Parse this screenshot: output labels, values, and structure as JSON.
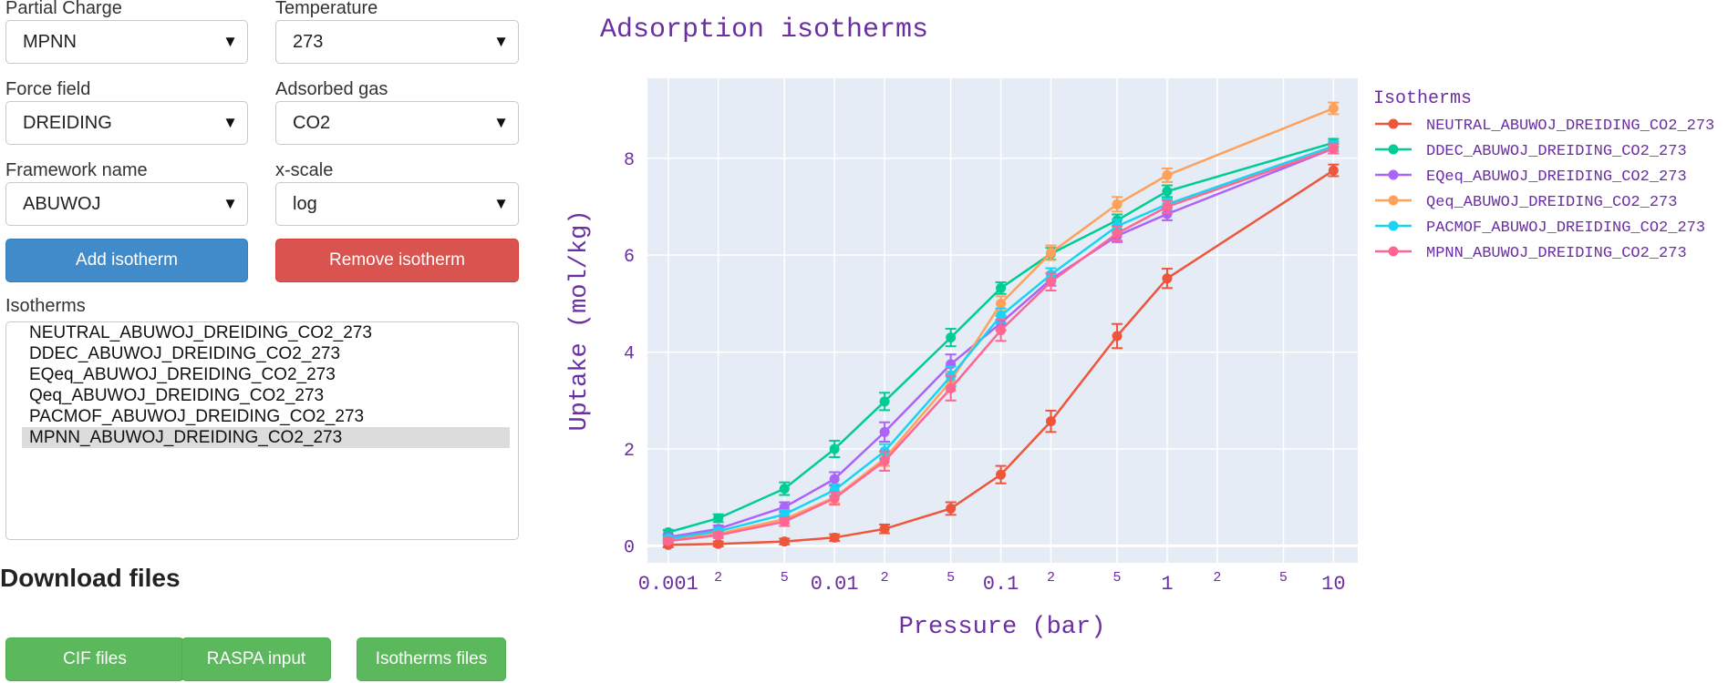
{
  "controls": {
    "partial_charge": {
      "label": "Partial Charge",
      "value": "MPNN"
    },
    "temperature": {
      "label": "Temperature",
      "value": "273"
    },
    "force_field": {
      "label": "Force field",
      "value": "DREIDING"
    },
    "adsorbed_gas": {
      "label": "Adsorbed gas",
      "value": "CO2"
    },
    "framework_name": {
      "label": "Framework name",
      "value": "ABUWOJ"
    },
    "x_scale": {
      "label": "x-scale",
      "value": "log"
    },
    "add_button": "Add isotherm",
    "remove_button": "Remove isotherm"
  },
  "isotherm_list": {
    "label": "Isotherms",
    "items": [
      "NEUTRAL_ABUWOJ_DREIDING_CO2_273",
      "DDEC_ABUWOJ_DREIDING_CO2_273",
      "EQeq_ABUWOJ_DREIDING_CO2_273",
      "Qeq_ABUWOJ_DREIDING_CO2_273",
      "PACMOF_ABUWOJ_DREIDING_CO2_273",
      "MPNN_ABUWOJ_DREIDING_CO2_273"
    ],
    "selected": "MPNN_ABUWOJ_DREIDING_CO2_273"
  },
  "downloads": {
    "title": "Download files",
    "cif": "CIF files",
    "raspa": "RASPA input",
    "isotherms": "Isotherms files"
  },
  "colors": {
    "plot_bg": "#e5ecf6",
    "title": "#6a2fa0",
    "NEUTRAL": "#ef553b",
    "DDEC": "#00cc96",
    "EQeq": "#ab63fa",
    "Qeq": "#ffa15a",
    "PACMOF": "#19d3f3",
    "MPNN": "#ff6692"
  },
  "chart_data": {
    "type": "line",
    "title": "Adsorption isotherms",
    "xlabel": "Pressure (bar)",
    "ylabel": "Uptake (mol/kg)",
    "xscale": "log",
    "xlim": [
      0.00075,
      14
    ],
    "ylim": [
      -0.35,
      9.65
    ],
    "x_ticks_major": [
      {
        "value": 0.001,
        "label": "0.001"
      },
      {
        "value": 0.01,
        "label": "0.01"
      },
      {
        "value": 0.1,
        "label": "0.1"
      },
      {
        "value": 1,
        "label": "1"
      },
      {
        "value": 10,
        "label": "10"
      }
    ],
    "x_ticks_minor": [
      {
        "value": 0.002,
        "label": "2"
      },
      {
        "value": 0.005,
        "label": "5"
      },
      {
        "value": 0.02,
        "label": "2"
      },
      {
        "value": 0.05,
        "label": "5"
      },
      {
        "value": 0.2,
        "label": "2"
      },
      {
        "value": 0.5,
        "label": "5"
      },
      {
        "value": 2,
        "label": "2"
      },
      {
        "value": 5,
        "label": "5"
      }
    ],
    "y_ticks": [
      0,
      2,
      4,
      6,
      8
    ],
    "legend_title": "Isotherms",
    "legend_position": "right",
    "x": [
      0.001,
      0.002,
      0.005,
      0.01,
      0.02,
      0.05,
      0.1,
      0.2,
      0.5,
      1,
      10
    ],
    "series": [
      {
        "name": "NEUTRAL_ABUWOJ_DREIDING_CO2_273",
        "color": "#ef553b",
        "values": [
          0.02,
          0.04,
          0.09,
          0.17,
          0.35,
          0.77,
          1.47,
          2.57,
          4.33,
          5.52,
          7.75
        ],
        "errors": [
          0.05,
          0.05,
          0.06,
          0.07,
          0.09,
          0.13,
          0.18,
          0.22,
          0.25,
          0.2,
          0.12
        ]
      },
      {
        "name": "DDEC_ABUWOJ_DREIDING_CO2_273",
        "color": "#00cc96",
        "values": [
          0.28,
          0.57,
          1.18,
          2.0,
          2.98,
          4.3,
          5.32,
          6.03,
          6.72,
          7.32,
          8.32
        ],
        "errors": [
          0.05,
          0.08,
          0.13,
          0.17,
          0.18,
          0.18,
          0.12,
          0.12,
          0.12,
          0.12,
          0.08
        ]
      },
      {
        "name": "EQeq_ABUWOJ_DREIDING_CO2_273",
        "color": "#ab63fa",
        "values": [
          0.18,
          0.35,
          0.8,
          1.38,
          2.35,
          3.75,
          4.6,
          5.5,
          6.4,
          6.85,
          8.2
        ],
        "errors": [
          0.05,
          0.07,
          0.1,
          0.14,
          0.2,
          0.2,
          0.15,
          0.13,
          0.13,
          0.13,
          0.1
        ]
      },
      {
        "name": "Qeq_ABUWOJ_DREIDING_CO2_273",
        "color": "#ffa15a",
        "values": [
          0.12,
          0.25,
          0.55,
          1.0,
          1.8,
          3.4,
          5.0,
          6.05,
          7.05,
          7.65,
          9.03
        ],
        "errors": [
          0.05,
          0.06,
          0.09,
          0.12,
          0.15,
          0.2,
          0.15,
          0.15,
          0.15,
          0.14,
          0.12
        ]
      },
      {
        "name": "PACMOF_ABUWOJ_DREIDING_CO2_273",
        "color": "#19d3f3",
        "values": [
          0.15,
          0.3,
          0.65,
          1.15,
          1.95,
          3.5,
          4.75,
          5.6,
          6.6,
          7.05,
          8.25
        ],
        "errors": [
          0.05,
          0.06,
          0.09,
          0.12,
          0.15,
          0.2,
          0.15,
          0.13,
          0.13,
          0.12,
          0.1
        ]
      },
      {
        "name": "MPNN_ABUWOJ_DREIDING_CO2_273",
        "color": "#ff6692",
        "values": [
          0.1,
          0.22,
          0.5,
          0.98,
          1.75,
          3.25,
          4.45,
          5.45,
          6.45,
          7.0,
          8.2
        ],
        "errors": [
          0.05,
          0.06,
          0.09,
          0.13,
          0.2,
          0.25,
          0.22,
          0.18,
          0.15,
          0.13,
          0.1
        ]
      }
    ]
  }
}
